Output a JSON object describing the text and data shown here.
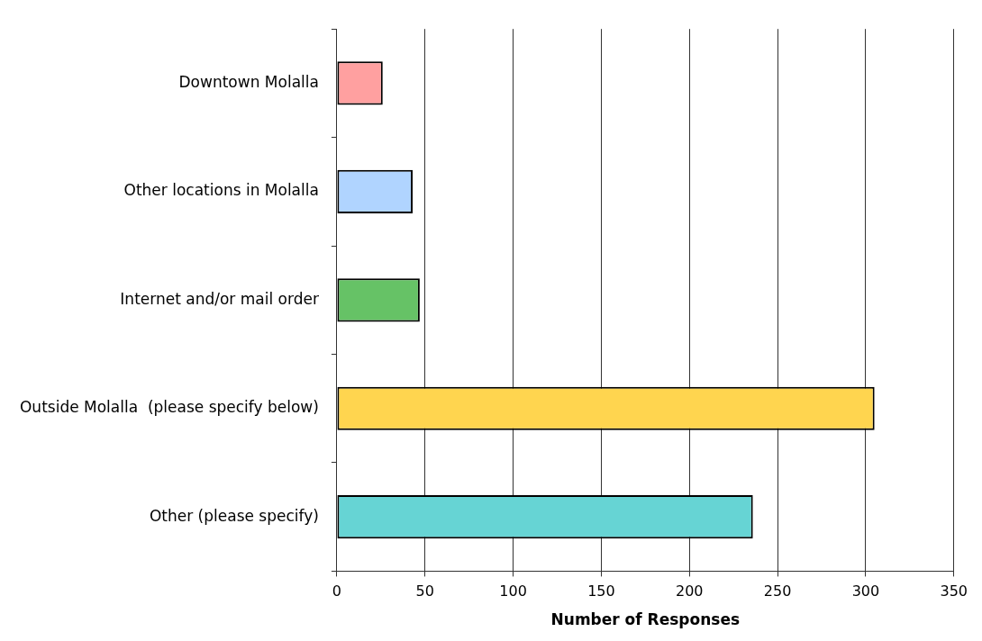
{
  "chart_data": {
    "type": "bar",
    "orientation": "horizontal",
    "xlabel": "Number of Responses",
    "categories": [
      "Downtown Molalla",
      "Other locations in Molalla",
      "Internet and/or mail order",
      "Outside Molalla  (please specify below)",
      "Other (please specify)"
    ],
    "values": [
      26,
      43,
      47,
      305,
      236
    ],
    "colors": [
      "#ffa0a0",
      "#b0d4ff",
      "#66c266",
      "#ffd54f",
      "#66d4d4"
    ],
    "xlim": [
      0,
      350
    ],
    "xticks": [
      0,
      50,
      100,
      150,
      200,
      250,
      300,
      350
    ],
    "grid": "x",
    "legend": false
  }
}
